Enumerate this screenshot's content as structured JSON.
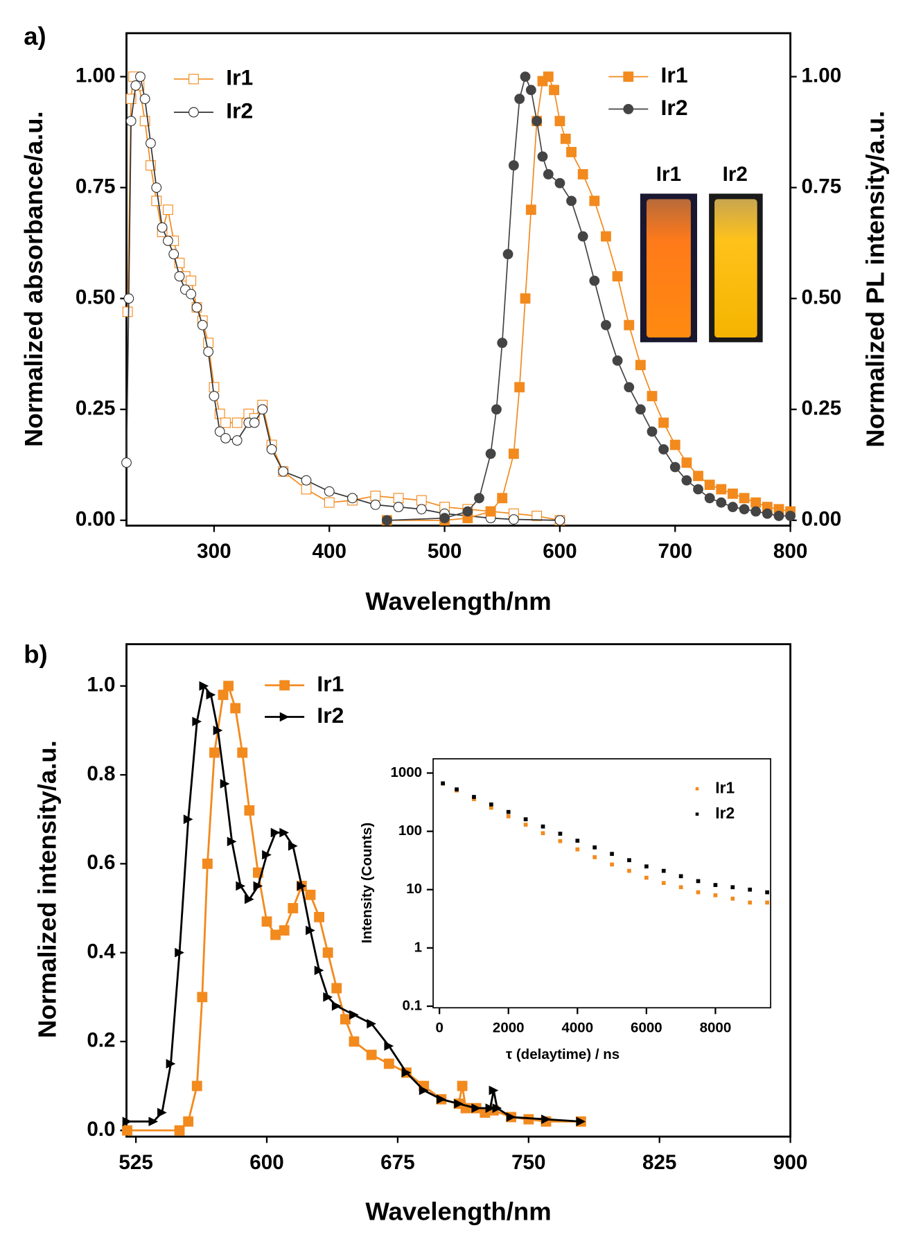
{
  "chart_data": [
    {
      "type": "line",
      "panel_label": "a)",
      "x_label": "Wavelength/nm",
      "y_label": "Normalized absorbance/a.u.",
      "y2_label": "Normalized PL intensity/a.u.",
      "xlim": [
        224,
        800
      ],
      "ylim": [
        -0.012,
        1.098
      ],
      "y2lim": [
        -0.012,
        1.098
      ],
      "xticks": [
        300,
        400,
        500,
        600,
        700,
        800
      ],
      "yticks": [
        {
          "value": 0,
          "label": "0.00"
        },
        {
          "value": 0.25,
          "label": "0.25"
        },
        {
          "value": 0.5,
          "label": "0.50"
        },
        {
          "value": 0.75,
          "label": "0.75"
        },
        {
          "value": 1,
          "label": "1.00"
        }
      ],
      "y2ticks": [
        {
          "value": 0,
          "label": "0.00"
        },
        {
          "value": 0.25,
          "label": "0.25"
        },
        {
          "value": 0.5,
          "label": "0.50"
        },
        {
          "value": 0.75,
          "label": "0.75"
        },
        {
          "value": 1,
          "label": "1.00"
        }
      ],
      "annotations": [
        "Ir1",
        "Ir2"
      ],
      "series": [
        {
          "name": "Ir1",
          "color": "#f28a1e",
          "marker": "open-square",
          "axis": "y",
          "x": [
            225,
            228,
            230,
            235,
            240,
            245,
            250,
            255,
            260,
            265,
            270,
            275,
            280,
            285,
            290,
            295,
            300,
            305,
            310,
            320,
            330,
            335,
            342,
            350,
            360,
            380,
            400,
            420,
            440,
            460,
            480,
            500,
            520,
            540,
            560,
            580,
            600
          ],
          "values": [
            0.47,
            0.95,
            1.0,
            0.98,
            0.9,
            0.8,
            0.72,
            0.65,
            0.7,
            0.63,
            0.58,
            0.55,
            0.54,
            0.48,
            0.45,
            0.4,
            0.3,
            0.24,
            0.22,
            0.22,
            0.24,
            0.23,
            0.26,
            0.17,
            0.11,
            0.07,
            0.04,
            0.045,
            0.055,
            0.05,
            0.045,
            0.03,
            0.025,
            0.02,
            0.015,
            0.01,
            0.0
          ]
        },
        {
          "name": "Ir2",
          "color": "#333333",
          "marker": "open-circle",
          "axis": "y",
          "x": [
            224,
            226,
            228,
            232,
            236,
            240,
            245,
            250,
            255,
            260,
            265,
            270,
            275,
            280,
            285,
            290,
            295,
            300,
            305,
            310,
            320,
            330,
            335,
            342,
            350,
            360,
            380,
            400,
            420,
            440,
            460,
            480,
            500,
            520,
            540,
            560,
            600
          ],
          "values": [
            0.13,
            0.5,
            0.9,
            0.98,
            1.0,
            0.95,
            0.85,
            0.75,
            0.66,
            0.63,
            0.6,
            0.55,
            0.52,
            0.51,
            0.48,
            0.44,
            0.38,
            0.28,
            0.2,
            0.185,
            0.18,
            0.22,
            0.22,
            0.25,
            0.16,
            0.11,
            0.09,
            0.065,
            0.05,
            0.035,
            0.03,
            0.025,
            0.015,
            0.01,
            0.005,
            0.002,
            0.0
          ]
        },
        {
          "name": "Ir1",
          "color": "#f28a1e",
          "marker": "square",
          "axis": "y2",
          "x": [
            450,
            500,
            520,
            540,
            550,
            560,
            565,
            570,
            575,
            580,
            585,
            590,
            595,
            600,
            605,
            610,
            620,
            630,
            640,
            650,
            660,
            670,
            680,
            690,
            700,
            710,
            720,
            730,
            740,
            750,
            760,
            770,
            780,
            790,
            800
          ],
          "values": [
            0,
            0,
            0.005,
            0.02,
            0.05,
            0.15,
            0.3,
            0.5,
            0.7,
            0.9,
            0.99,
            1.0,
            0.97,
            0.9,
            0.86,
            0.83,
            0.78,
            0.72,
            0.64,
            0.55,
            0.44,
            0.35,
            0.28,
            0.22,
            0.17,
            0.13,
            0.1,
            0.08,
            0.07,
            0.06,
            0.05,
            0.04,
            0.03,
            0.025,
            0.02
          ]
        },
        {
          "name": "Ir2",
          "color": "#444444",
          "marker": "circle",
          "axis": "y2",
          "x": [
            450,
            500,
            520,
            530,
            540,
            545,
            550,
            555,
            560,
            565,
            570,
            575,
            580,
            585,
            590,
            600,
            610,
            620,
            630,
            640,
            650,
            660,
            670,
            680,
            690,
            700,
            710,
            720,
            730,
            740,
            750,
            760,
            770,
            780,
            790,
            800
          ],
          "values": [
            0,
            0.005,
            0.02,
            0.05,
            0.15,
            0.25,
            0.4,
            0.6,
            0.8,
            0.95,
            1.0,
            0.97,
            0.9,
            0.82,
            0.78,
            0.76,
            0.72,
            0.64,
            0.54,
            0.44,
            0.36,
            0.3,
            0.25,
            0.2,
            0.16,
            0.12,
            0.09,
            0.07,
            0.05,
            0.04,
            0.03,
            0.025,
            0.02,
            0.015,
            0.01,
            0.01
          ]
        }
      ]
    },
    {
      "type": "line",
      "panel_label": "b)",
      "x_label": "Wavelength/nm",
      "y_label": "Normalized intensity/a.u.",
      "xlim": [
        519.6,
        900
      ],
      "ylim": [
        -0.014,
        1.094
      ],
      "xticks": [
        525,
        600,
        675,
        750,
        825,
        900
      ],
      "yticks": [
        {
          "value": 0,
          "label": "0.0"
        },
        0.2,
        0.4,
        0.6,
        0.8,
        {
          "value": 1,
          "label": "1.0"
        }
      ],
      "series": [
        {
          "name": "Ir1",
          "color": "#f28a1e",
          "marker": "square",
          "x": [
            520,
            550,
            555,
            560,
            563,
            566,
            570,
            575,
            578,
            582,
            586,
            590,
            595,
            600,
            605,
            610,
            615,
            620,
            625,
            630,
            635,
            640,
            645,
            650,
            660,
            670,
            680,
            690,
            700,
            710,
            712,
            714,
            720,
            725,
            730,
            740,
            750,
            760,
            780
          ],
          "values": [
            0,
            0,
            0.02,
            0.1,
            0.3,
            0.6,
            0.85,
            0.98,
            1.0,
            0.95,
            0.85,
            0.72,
            0.58,
            0.47,
            0.44,
            0.45,
            0.5,
            0.55,
            0.53,
            0.48,
            0.4,
            0.32,
            0.25,
            0.2,
            0.17,
            0.15,
            0.13,
            0.1,
            0.07,
            0.06,
            0.1,
            0.05,
            0.05,
            0.04,
            0.045,
            0.03,
            0.025,
            0.02,
            0.02
          ]
        },
        {
          "name": "Ir2",
          "color": "#000000",
          "marker": "triangle",
          "x": [
            520,
            535,
            540,
            545,
            550,
            555,
            560,
            564,
            568,
            572,
            576,
            580,
            585,
            590,
            595,
            600,
            605,
            610,
            615,
            620,
            625,
            630,
            635,
            640,
            650,
            660,
            670,
            680,
            690,
            700,
            710,
            720,
            728,
            730,
            732,
            740,
            760,
            780
          ],
          "values": [
            0.02,
            0.02,
            0.04,
            0.15,
            0.4,
            0.7,
            0.92,
            1.0,
            0.98,
            0.9,
            0.78,
            0.65,
            0.55,
            0.52,
            0.55,
            0.62,
            0.67,
            0.67,
            0.64,
            0.55,
            0.45,
            0.36,
            0.3,
            0.28,
            0.26,
            0.24,
            0.19,
            0.13,
            0.09,
            0.07,
            0.06,
            0.05,
            0.05,
            0.09,
            0.05,
            0.03,
            0.025,
            0.02
          ]
        }
      ]
    },
    {
      "type": "scatter",
      "x_label": "τ (delaytime) / ns",
      "y_label": "Intensity (Counts)",
      "log_y": true,
      "xlim": [
        -183,
        9600
      ],
      "ylim": [
        0.094,
        1755
      ],
      "xticks": [
        0,
        2000,
        4000,
        6000,
        8000
      ],
      "yticks": [
        0.1,
        1,
        10,
        100,
        1000
      ],
      "series": [
        {
          "name": "Ir1",
          "color": "#f28a1e",
          "x": [
            100,
            500,
            1000,
            1500,
            2000,
            2500,
            3000,
            3500,
            4000,
            4500,
            5000,
            5500,
            6000,
            6500,
            7000,
            7500,
            8000,
            8500,
            9000,
            9500
          ],
          "values": [
            659,
            501,
            356,
            254,
            181,
            130,
            93,
            68,
            49,
            36,
            27,
            21,
            16,
            13,
            11,
            9,
            8,
            7,
            6,
            6
          ]
        },
        {
          "name": "Ir2",
          "color": "#000000",
          "x": [
            100,
            500,
            1000,
            1500,
            2000,
            2500,
            3000,
            3500,
            4000,
            4500,
            5000,
            5500,
            6000,
            6500,
            7000,
            7500,
            8000,
            8500,
            9000,
            9500
          ],
          "values": [
            666,
            524,
            389,
            289,
            215,
            161,
            121,
            91,
            69,
            53,
            41,
            32,
            25,
            21,
            17,
            14,
            12,
            11,
            10,
            9
          ]
        }
      ]
    }
  ]
}
